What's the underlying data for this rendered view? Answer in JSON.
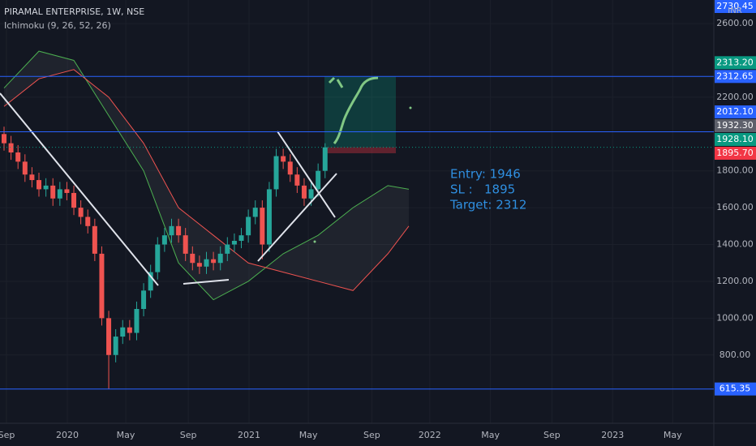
{
  "header": {
    "title": "PIRAMAL ENTERPRISE, 1W, NSE",
    "indicator": "Ichimoku (9, 26, 52, 26)",
    "currency": "INR"
  },
  "chart_data": {
    "type": "candlestick",
    "up_color": "#26a69a",
    "down_color": "#ef5350",
    "open": [
      2000,
      1950,
      1900,
      1850,
      1780,
      1750,
      1700,
      1720,
      1650,
      1700,
      1680,
      1600,
      1550,
      1500,
      1350,
      1000,
      800,
      900,
      950,
      920,
      1050,
      1150,
      1250,
      1400,
      1450,
      1500,
      1450,
      1350,
      1300,
      1280,
      1320,
      1300,
      1350,
      1400,
      1420,
      1450,
      1550,
      1600,
      1400,
      1700,
      1880,
      1850,
      1780,
      1720,
      1650,
      1700,
      1800
    ],
    "high": [
      2040,
      1990,
      1940,
      1890,
      1820,
      1790,
      1760,
      1760,
      1740,
      1740,
      1720,
      1640,
      1590,
      1540,
      1390,
      1040,
      940,
      990,
      990,
      1090,
      1190,
      1290,
      1440,
      1490,
      1540,
      1540,
      1490,
      1390,
      1340,
      1360,
      1360,
      1390,
      1440,
      1460,
      1490,
      1590,
      1640,
      1640,
      1740,
      1920,
      1920,
      1890,
      1820,
      1760,
      1740,
      1840,
      1950
    ],
    "low": [
      1910,
      1860,
      1810,
      1740,
      1710,
      1660,
      1660,
      1610,
      1610,
      1640,
      1560,
      1510,
      1460,
      1310,
      960,
      615,
      760,
      860,
      880,
      880,
      1010,
      1110,
      1210,
      1360,
      1410,
      1410,
      1310,
      1260,
      1240,
      1240,
      1260,
      1260,
      1310,
      1360,
      1380,
      1410,
      1510,
      1320,
      1360,
      1660,
      1810,
      1740,
      1680,
      1610,
      1610,
      1660,
      1760
    ],
    "close": [
      1950,
      1900,
      1850,
      1780,
      1750,
      1700,
      1720,
      1650,
      1700,
      1680,
      1600,
      1550,
      1500,
      1350,
      1000,
      800,
      900,
      950,
      920,
      1050,
      1150,
      1250,
      1400,
      1450,
      1500,
      1450,
      1350,
      1300,
      1280,
      1320,
      1300,
      1350,
      1400,
      1420,
      1450,
      1550,
      1600,
      1400,
      1700,
      1880,
      1850,
      1780,
      1720,
      1650,
      1700,
      1800,
      1928
    ],
    "ichimoku": [
      {
        "name": "Lead 1",
        "color": "#4caf50",
        "x": [
          0,
          5,
          10,
          15,
          20,
          25,
          30,
          35,
          40,
          45,
          50,
          55,
          58
        ],
        "values": [
          2250,
          2450,
          2400,
          2100,
          1800,
          1300,
          1100,
          1200,
          1350,
          1450,
          1600,
          1720,
          1700
        ]
      },
      {
        "name": "Lead 2",
        "color": "#ef5350",
        "x": [
          0,
          5,
          10,
          15,
          20,
          25,
          30,
          35,
          40,
          45,
          50,
          55,
          58
        ],
        "values": [
          2150,
          2300,
          2350,
          2200,
          1950,
          1600,
          1450,
          1300,
          1250,
          1200,
          1150,
          1350,
          1500
        ]
      }
    ],
    "xlim": [
      -0.58,
      101.7
    ],
    "xticks": [
      {
        "value": 0.35,
        "label": "Sep"
      },
      {
        "value": 9.07,
        "label": "2020"
      },
      {
        "value": 17.44,
        "label": "May"
      },
      {
        "value": 26.4,
        "label": "Sep"
      },
      {
        "value": 35.1,
        "label": "2021"
      },
      {
        "value": 43.6,
        "label": "May"
      },
      {
        "value": 52.7,
        "label": "Sep"
      },
      {
        "value": 61.0,
        "label": "2022"
      },
      {
        "value": 69.7,
        "label": "May"
      },
      {
        "value": 78.5,
        "label": "Sep"
      },
      {
        "value": 87.2,
        "label": "2023"
      },
      {
        "value": 95.8,
        "label": "May"
      }
    ],
    "ylim": [
      429,
      2728
    ],
    "yticks": [
      {
        "value": 800,
        "label": "800.00"
      },
      {
        "value": 1000,
        "label": "1000.00"
      },
      {
        "value": 1200,
        "label": "1200.00"
      },
      {
        "value": 1400,
        "label": "1400.00"
      },
      {
        "value": 1600,
        "label": "1600.00"
      },
      {
        "value": 1800,
        "label": "1800.00"
      },
      {
        "value": 2200,
        "label": "2200.00"
      },
      {
        "value": 2600,
        "label": "2600.00"
      }
    ],
    "grid": true,
    "price_levels": [
      {
        "value": 615.35,
        "label": "615.35",
        "color": "#2962ff",
        "line": true
      },
      {
        "value": 1895.7,
        "label": "1895.70",
        "color": "#f23645",
        "line": false
      },
      {
        "value": 1928.1,
        "label": "1928.10",
        "color": "#089981",
        "line": false
      },
      {
        "value": 1932.3,
        "label": "1932.30",
        "color": "#5d606b",
        "line": false
      },
      {
        "value": 2012.1,
        "label": "2012.10",
        "color": "#2962ff",
        "line": true
      },
      {
        "value": 2312.65,
        "label": "2312.65",
        "color": "#2962ff",
        "line": true
      },
      {
        "value": 2313.2,
        "label": "2313.20",
        "color": "#089981",
        "line": false
      },
      {
        "value": 2730.45,
        "label": "2730.45",
        "color": "#2962ff",
        "line": true
      }
    ],
    "annotations": [
      "Entry: 1946",
      "SL :   1895",
      "Target: 2312"
    ]
  }
}
